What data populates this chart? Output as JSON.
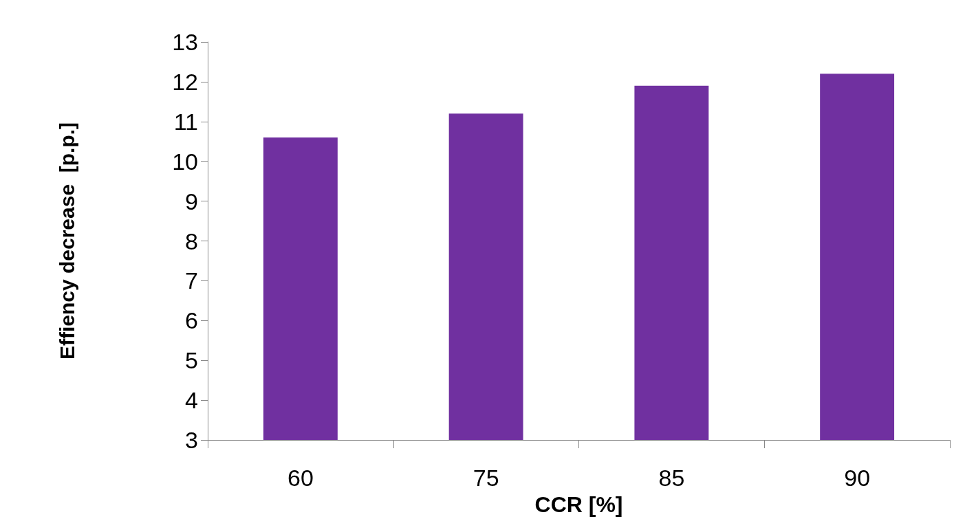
{
  "chart_data": {
    "type": "bar",
    "xlabel": "CCR [%]",
    "ylabel": "Effiency decrease  [p.p.]",
    "categories": [
      "60",
      "75",
      "85",
      "90"
    ],
    "values": [
      10.6,
      11.2,
      11.9,
      12.2
    ],
    "color": "#7030a0",
    "ylim": [
      3,
      13
    ],
    "yticks": [
      3,
      4,
      5,
      6,
      7,
      8,
      9,
      10,
      11,
      12,
      13
    ],
    "grid": false
  }
}
